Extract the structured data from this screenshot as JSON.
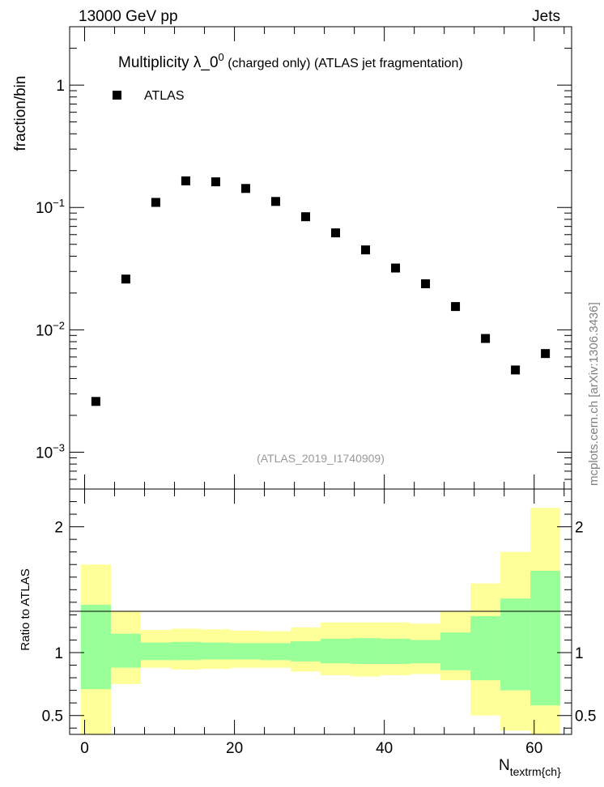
{
  "header": {
    "left": "13000 GeV pp",
    "right": "Jets",
    "side_label": "mcplots.cern.ch [arXiv:1306.3436]"
  },
  "chart_data": [
    {
      "type": "scatter",
      "title_main": "Multiplicity  λ_0",
      "title_sup": "0",
      "title_rest": " (charged only) (ATLAS jet fragmentation)",
      "ylabel": "fraction/bin",
      "yscale": "log",
      "ylim": [
        0.0005,
        3.0
      ],
      "xlim": [
        -2,
        65
      ],
      "reference": "(ATLAS_2019_I1740909)",
      "ytick_labels": [
        "1",
        "10",
        "10",
        "10"
      ],
      "ytick_exponents": [
        "",
        "−1",
        "−2",
        "−3"
      ],
      "series": [
        {
          "name": "ATLAS",
          "color": "#000000",
          "marker": "square",
          "x": [
            1.5,
            5.5,
            9.5,
            13.5,
            17.5,
            21.5,
            25.5,
            29.5,
            33.5,
            37.5,
            41.5,
            45.5,
            49.5,
            53.5,
            57.5,
            61.5
          ],
          "y": [
            0.0026,
            0.026,
            0.11,
            0.165,
            0.162,
            0.143,
            0.112,
            0.084,
            0.062,
            0.045,
            0.032,
            0.0238,
            0.0155,
            0.0085,
            0.0047,
            0.0064
          ]
        }
      ]
    },
    {
      "type": "area",
      "ylabel": "Ratio to ATLAS",
      "xlabel_main": "N",
      "xlabel_sub": "textrm{ch}",
      "ylim": [
        0.35,
        2.3
      ],
      "xlim": [
        -2,
        65
      ],
      "xtick_labels": [
        "0",
        "20",
        "40",
        "60"
      ],
      "ytick_labels": [
        "0.5",
        "1",
        "2"
      ],
      "bin_edges": [
        -0.5,
        3.5,
        7.5,
        11.5,
        15.5,
        19.5,
        23.5,
        27.5,
        31.5,
        35.5,
        39.5,
        43.5,
        47.5,
        51.5,
        55.5,
        59.5,
        63.5
      ],
      "bands": [
        {
          "name": "total uncertainty",
          "color": "#ffff99",
          "low": [
            0.3,
            0.75,
            0.88,
            0.865,
            0.87,
            0.88,
            0.88,
            0.85,
            0.82,
            0.81,
            0.82,
            0.83,
            0.78,
            0.5,
            0.38,
            0.3
          ],
          "high": [
            1.7,
            1.33,
            1.18,
            1.19,
            1.185,
            1.175,
            1.17,
            1.2,
            1.24,
            1.24,
            1.24,
            1.23,
            1.33,
            1.55,
            1.8,
            2.15
          ]
        },
        {
          "name": "statistical uncertainty",
          "color": "#99ff99",
          "low": [
            0.71,
            0.88,
            0.94,
            0.94,
            0.945,
            0.945,
            0.94,
            0.93,
            0.915,
            0.91,
            0.91,
            0.915,
            0.86,
            0.78,
            0.7,
            0.58
          ],
          "high": [
            1.38,
            1.15,
            1.08,
            1.085,
            1.08,
            1.075,
            1.075,
            1.09,
            1.11,
            1.115,
            1.11,
            1.1,
            1.16,
            1.29,
            1.43,
            1.65
          ]
        }
      ]
    }
  ]
}
